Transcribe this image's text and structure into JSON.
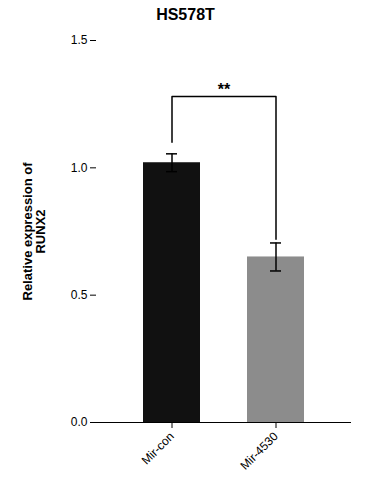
{
  "chart_data": {
    "type": "bar",
    "title": "HS578T",
    "categories": [
      "Mir-con",
      "Mir-4530"
    ],
    "values": [
      1.02,
      0.65
    ],
    "errors": [
      0.035,
      0.055
    ],
    "colors": [
      "#111111",
      "#8c8c8c"
    ],
    "ylabel": "Relative expression of\nRUNX2",
    "ylim": [
      0,
      1.5
    ],
    "yticks": [
      {
        "value": 0,
        "label": "0.0"
      },
      {
        "value": 0.5,
        "label": "0.5"
      },
      {
        "value": 1,
        "label": "1.0"
      },
      {
        "value": 1.5,
        "label": "1.5"
      }
    ],
    "annotations": [
      {
        "text": "**",
        "from": "Mir-con",
        "to": "Mir-4530",
        "y": 1.28,
        "y_from": 1.1,
        "y_to": 0.72
      }
    ]
  }
}
